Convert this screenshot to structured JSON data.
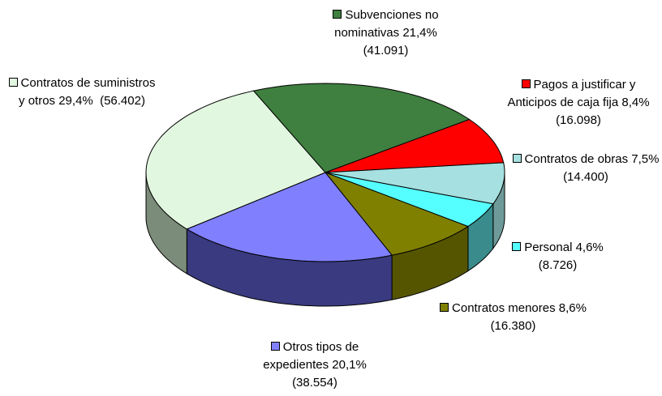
{
  "chart_data": {
    "type": "pie",
    "categories": [
      "Subvenciones no nominativas",
      "Pagos a justificar y Anticipos de caja fija",
      "Contratos de obras",
      "Personal",
      "Contratos menores",
      "Otros tipos de expedientes",
      "Contratos de suministros y otros"
    ],
    "values": [
      21.4,
      8.4,
      7.5,
      4.6,
      8.6,
      20.1,
      29.4
    ],
    "value_labels": [
      "21,4% (41.091)",
      "8,4% (16.098)",
      "7,5% (14.400)",
      "4,6% (8.726)",
      "8,6% (16.380)",
      "20,1%  (38.554)",
      "29,4%  (56.402)"
    ],
    "colors": [
      "#3f7f3f",
      "#ff0000",
      "#a6e0e0",
      "#55ffff",
      "#808000",
      "#8080ff",
      "#e2f7e0"
    ],
    "side_colors": [
      "#2a552a",
      "#aa0000",
      "#6e9a9a",
      "#3a8c8c",
      "#555500",
      "#3a3a80",
      "#7c8c7a"
    ]
  }
}
